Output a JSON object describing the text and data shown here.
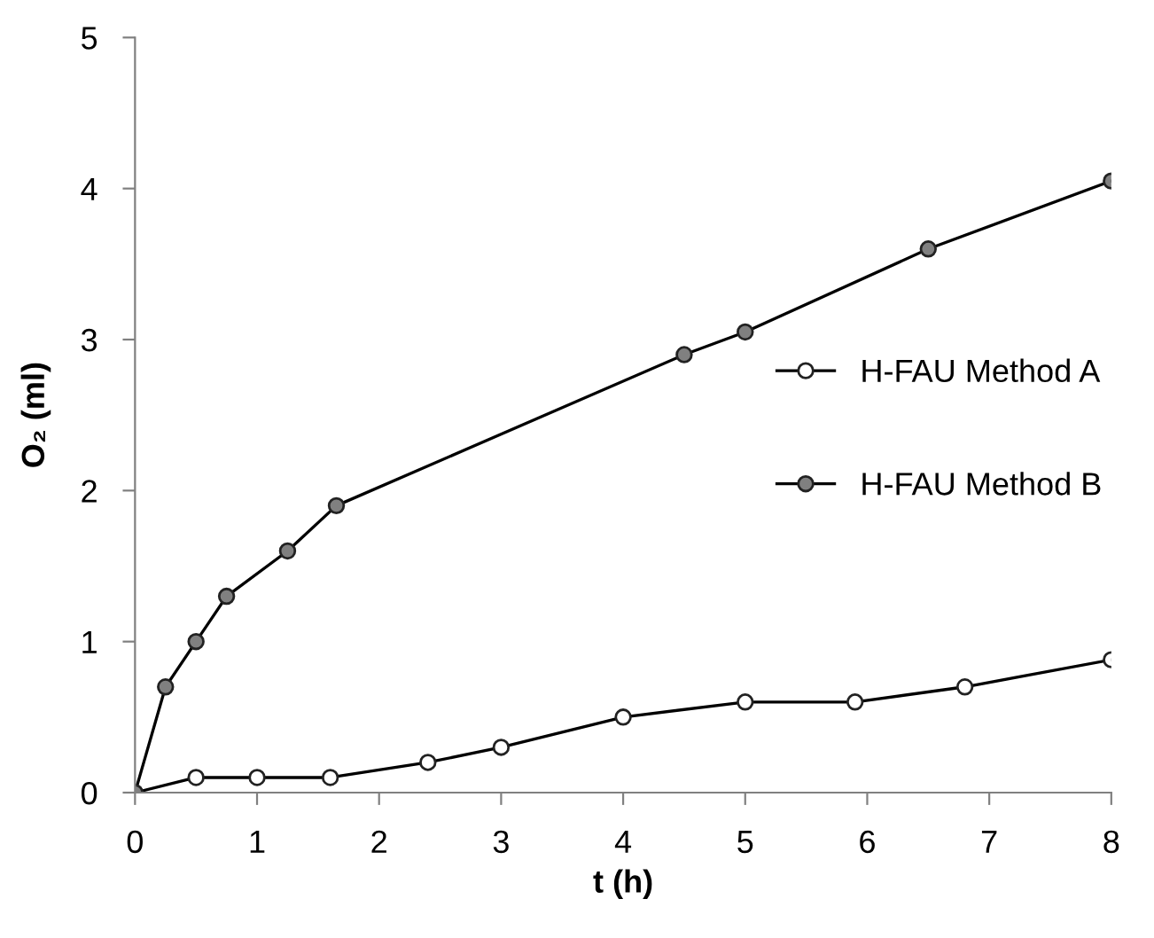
{
  "chart_data": {
    "type": "line",
    "xlabel": "t (h)",
    "ylabel": "O₂ (ml)",
    "xlim": [
      0,
      8
    ],
    "xticks": [
      0,
      1,
      2,
      3,
      4,
      5,
      6,
      7,
      8
    ],
    "ylim": [
      0,
      5
    ],
    "yticks": [
      0,
      1,
      2,
      3,
      4,
      5
    ],
    "grid": false,
    "legend": "right",
    "marker": "circle",
    "line_style": "solid",
    "series": [
      {
        "name": "H-FAU Method A",
        "color": "#ffffff",
        "x": [
          0,
          0.5,
          1.0,
          1.6,
          2.4,
          3.0,
          4.0,
          5.0,
          5.9,
          6.8,
          8.0
        ],
        "values": [
          0,
          0.1,
          0.1,
          0.1,
          0.2,
          0.3,
          0.5,
          0.6,
          0.6,
          0.7,
          0.88
        ]
      },
      {
        "name": "H-FAU Method B",
        "color": "#808080",
        "x": [
          0,
          0.25,
          0.5,
          0.75,
          1.25,
          1.65,
          4.5,
          5.0,
          6.5,
          8.0
        ],
        "values": [
          0,
          0.7,
          1.0,
          1.3,
          1.6,
          1.9,
          2.9,
          3.05,
          3.6,
          4.05
        ]
      }
    ]
  }
}
